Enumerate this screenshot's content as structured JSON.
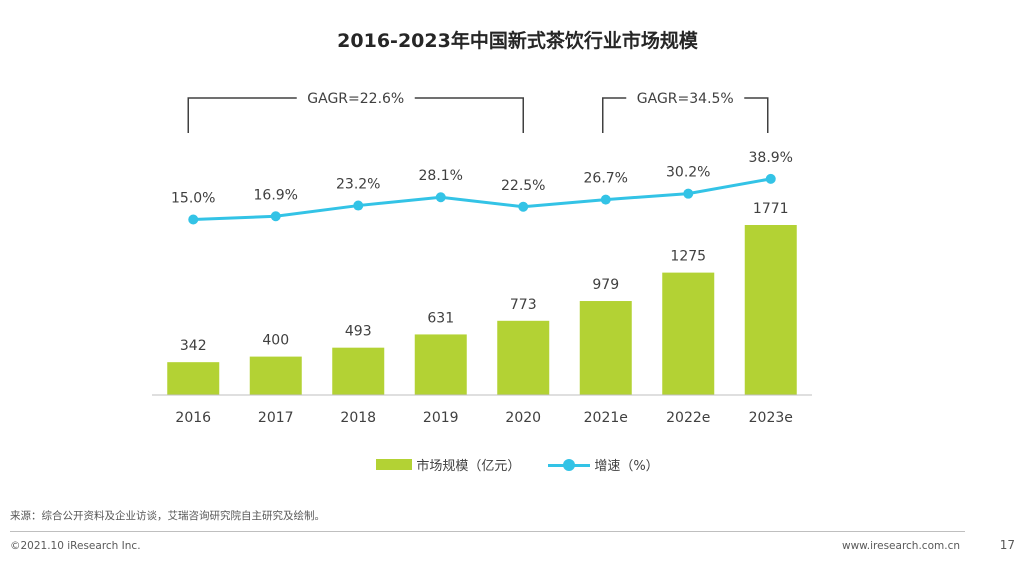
{
  "slide": {
    "title": "2016-2023年中国新式茶饮行业市场规模",
    "source": "来源：综合公开资料及企业访谈，艾瑞咨询研究院自主研究及绘制。",
    "copyright": "©2021.10 iResearch Inc.",
    "website": "www.iresearch.com.cn",
    "page_number": "17"
  },
  "chart_data": {
    "type": "bar",
    "title": "2016-2023年中国新式茶饮行业市场规模",
    "categories": [
      "2016",
      "2017",
      "2018",
      "2019",
      "2020",
      "2021e",
      "2022e",
      "2023e"
    ],
    "series": [
      {
        "name": "市场规模（亿元）",
        "type": "bar",
        "values": [
          342,
          400,
          493,
          631,
          773,
          979,
          1275,
          1771
        ],
        "color": "#b3d234"
      },
      {
        "name": "增速（%）",
        "type": "line",
        "values": [
          15.0,
          16.9,
          23.2,
          28.1,
          22.5,
          26.7,
          30.2,
          38.9
        ],
        "labels": [
          "15.0%",
          "16.9%",
          "23.2%",
          "28.1%",
          "22.5%",
          "26.7%",
          "30.2%",
          "38.9%"
        ],
        "color": "#33c3e6"
      }
    ],
    "annotations": [
      {
        "text": "GAGR=22.6%",
        "from": "2016",
        "to": "2020"
      },
      {
        "text": "GAGR=34.5%",
        "from": "2021e",
        "to": "2023e"
      }
    ],
    "legend_position": "bottom",
    "grid": false
  }
}
